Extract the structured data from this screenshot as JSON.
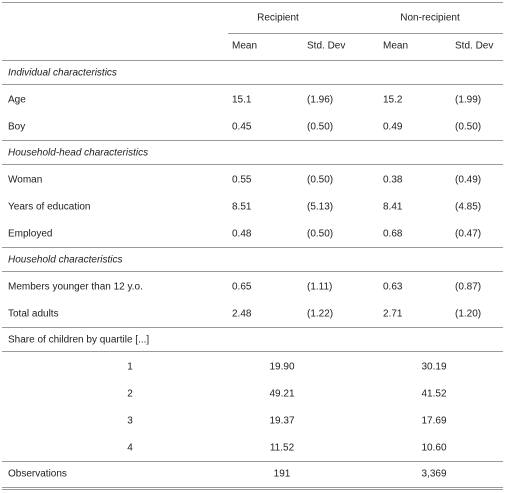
{
  "header": {
    "groups": [
      "Recipient",
      "Non-recipient"
    ],
    "columns": [
      "Mean",
      "Std. Dev",
      "Mean",
      "Std. Dev"
    ]
  },
  "sections": [
    {
      "title": "Individual characteristics",
      "rows": [
        {
          "label": "Age",
          "cells": [
            "15.1",
            "(1.96)",
            "15.2",
            "(1.99)"
          ]
        },
        {
          "label": "Boy",
          "cells": [
            "0.45",
            "(0.50)",
            "0.49",
            "(0.50)"
          ]
        }
      ]
    },
    {
      "title": "Household-head characteristics",
      "rows": [
        {
          "label": "Woman",
          "cells": [
            "0.55",
            "(0.50)",
            "0.38",
            "(0.49)"
          ]
        },
        {
          "label": "Years of education",
          "cells": [
            "8.51",
            "(5.13)",
            "8.41",
            "(4.85)"
          ]
        },
        {
          "label": "Employed",
          "cells": [
            "0.48",
            "(0.50)",
            "0.68",
            "(0.47)"
          ]
        }
      ]
    },
    {
      "title": "Household characteristics",
      "rows": [
        {
          "label": "Members younger than 12 y.o.",
          "cells": [
            "0.65",
            "(1.11)",
            "0.63",
            "(0.87)"
          ]
        },
        {
          "label": "Total adults",
          "cells": [
            "2.48",
            "(1.22)",
            "2.71",
            "(1.20)"
          ]
        }
      ]
    }
  ],
  "quartiles": {
    "title": "Share of children by quartile [...]",
    "rows": [
      {
        "label": "1",
        "cells": [
          "19.90",
          "30.19"
        ]
      },
      {
        "label": "2",
        "cells": [
          "49.21",
          "41.52"
        ]
      },
      {
        "label": "3",
        "cells": [
          "19.37",
          "17.69"
        ]
      },
      {
        "label": "4",
        "cells": [
          "11.52",
          "10.60"
        ]
      }
    ]
  },
  "observations": {
    "label": "Observations",
    "cells": [
      "191",
      "3,369"
    ]
  }
}
